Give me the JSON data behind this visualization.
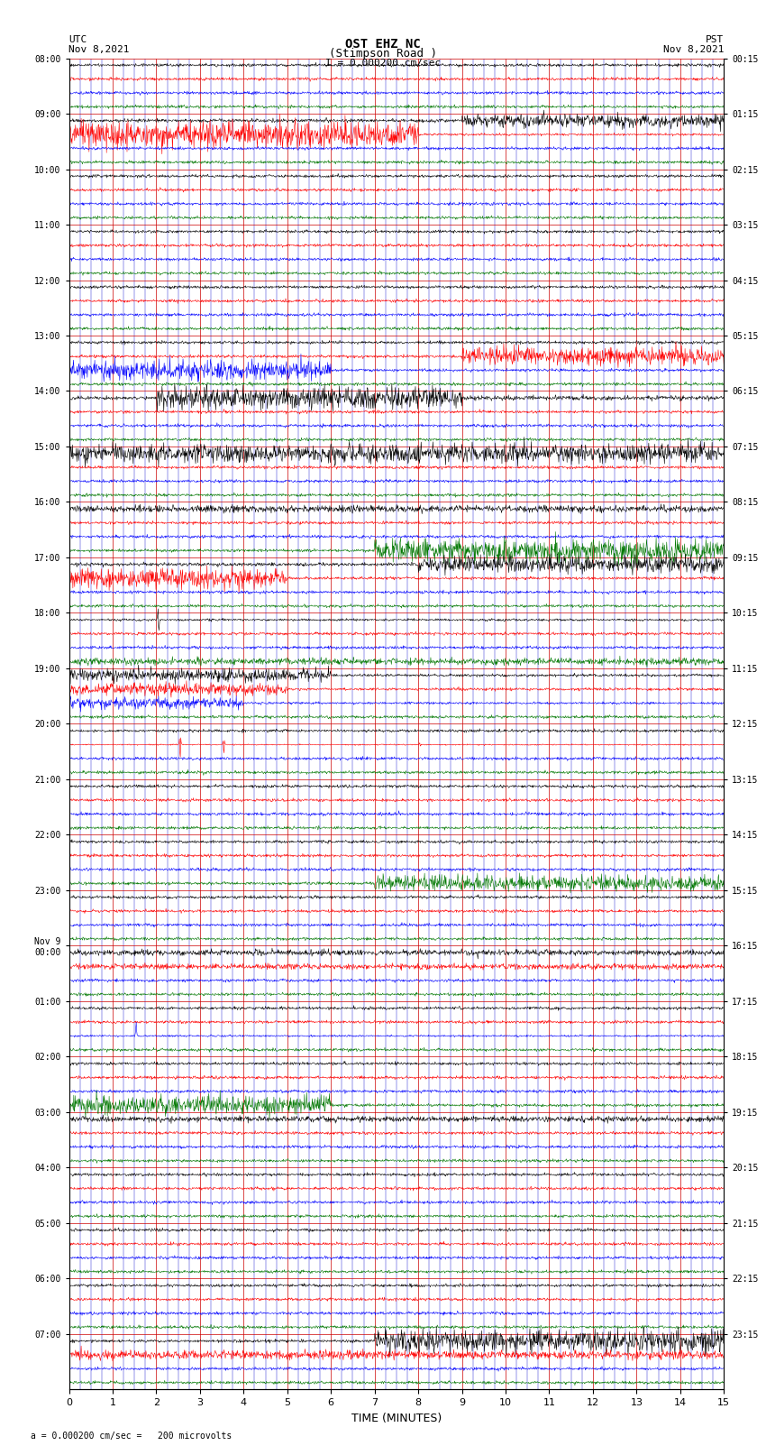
{
  "title_line1": "OST EHZ NC",
  "title_line2": "(Stimpson Road )",
  "title_line3": "I = 0.000200 cm/sec",
  "left_header_line1": "UTC",
  "left_header_line2": "Nov 8,2021",
  "right_header_line1": "PST",
  "right_header_line2": "Nov 8,2021",
  "footer": "= 0.000200 cm/sec =   200 microvolts",
  "xlabel": "TIME (MINUTES)",
  "background_color": "#ffffff",
  "grid_color_major": "#cc0000",
  "grid_color_minor": "#0000cc",
  "num_rows": 24,
  "num_traces_per_row": 4,
  "figsize": [
    8.5,
    16.13
  ],
  "dpi": 100,
  "utc_hours": [
    "08:00",
    "09:00",
    "10:00",
    "11:00",
    "12:00",
    "13:00",
    "14:00",
    "15:00",
    "16:00",
    "17:00",
    "18:00",
    "19:00",
    "20:00",
    "21:00",
    "22:00",
    "23:00",
    "Nov 9\n00:00",
    "01:00",
    "02:00",
    "03:00",
    "04:00",
    "05:00",
    "06:00",
    "07:00"
  ],
  "pst_hours": [
    "00:15",
    "01:15",
    "02:15",
    "03:15",
    "04:15",
    "05:15",
    "06:15",
    "07:15",
    "08:15",
    "09:15",
    "10:15",
    "11:15",
    "12:15",
    "13:15",
    "14:15",
    "15:15",
    "16:15",
    "17:15",
    "18:15",
    "19:15",
    "20:15",
    "21:15",
    "22:15",
    "23:15"
  ],
  "colors_cycle": [
    "black",
    "red",
    "blue",
    "#007700"
  ]
}
